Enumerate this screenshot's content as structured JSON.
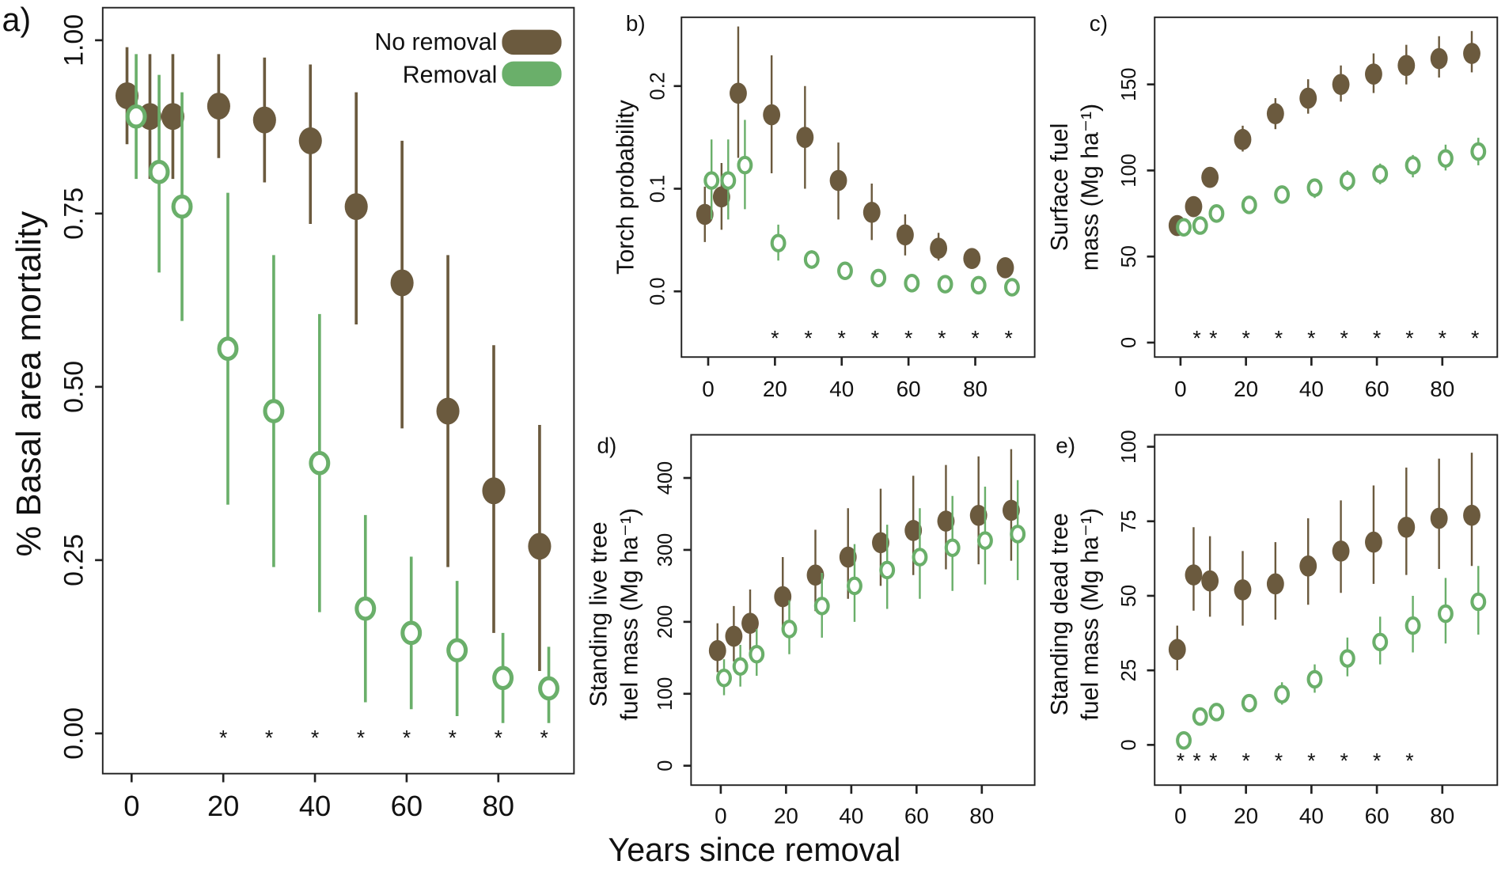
{
  "colors": {
    "no_removal": "#6b5a3e",
    "removal": "#6aaf6a"
  },
  "legend": {
    "no_removal": "No removal",
    "removal": "Removal",
    "placement": "top-right of panel a"
  },
  "xlabel": "Years since removal",
  "chart_data": [
    {
      "type": "scatter",
      "panel": "a)",
      "ylabel": [
        "% Basal area mortality"
      ],
      "x": [
        0,
        5,
        10,
        20,
        30,
        40,
        50,
        60,
        70,
        80,
        90
      ],
      "xlim": [
        -6.3,
        96.5
      ],
      "ylim": [
        -0.058,
        1.047
      ],
      "xticks": [
        "0",
        "20",
        "40",
        "60",
        "80"
      ],
      "xtick_values": [
        0,
        20,
        40,
        60,
        80
      ],
      "yticks": [
        "0.00",
        "0.25",
        "0.50",
        "0.75",
        "1.00"
      ],
      "ytick_values": [
        0,
        0.25,
        0.5,
        0.75,
        1.0
      ],
      "series": [
        {
          "name": "No removal",
          "values": [
            0.92,
            0.89,
            0.89,
            0.905,
            0.885,
            0.855,
            0.76,
            0.65,
            0.465,
            0.35,
            0.27
          ],
          "lower": [
            0.85,
            0.8,
            0.8,
            0.83,
            0.795,
            0.735,
            0.59,
            0.44,
            0.24,
            0.145,
            0.09
          ],
          "upper": [
            0.99,
            0.98,
            0.98,
            0.98,
            0.975,
            0.965,
            0.925,
            0.855,
            0.69,
            0.56,
            0.445
          ]
        },
        {
          "name": "Removal",
          "values": [
            0.89,
            0.81,
            0.76,
            0.555,
            0.465,
            0.39,
            0.18,
            0.145,
            0.12,
            0.08,
            0.065
          ],
          "lower": [
            0.8,
            0.665,
            0.595,
            0.33,
            0.24,
            0.175,
            0.045,
            0.035,
            0.025,
            0.015,
            0.015
          ],
          "upper": [
            0.98,
            0.95,
            0.925,
            0.78,
            0.69,
            0.605,
            0.315,
            0.255,
            0.22,
            0.145,
            0.125
          ]
        }
      ],
      "significant_x": [
        20,
        30,
        40,
        50,
        60,
        70,
        80,
        90
      ],
      "significance_marker": "*"
    },
    {
      "type": "scatter",
      "panel": "b)",
      "ylabel": [
        "Torch probability"
      ],
      "x": [
        0,
        5,
        10,
        20,
        30,
        40,
        50,
        60,
        70,
        80,
        90
      ],
      "xlim": [
        -8,
        97.8
      ],
      "ylim": [
        -0.064,
        0.267
      ],
      "xticks": [
        "0",
        "20",
        "40",
        "60",
        "80"
      ],
      "xtick_values": [
        0,
        20,
        40,
        60,
        80
      ],
      "yticks": [
        "0.0",
        "0.1",
        "0.2"
      ],
      "ytick_values": [
        0,
        0.1,
        0.2
      ],
      "series": [
        {
          "name": "No removal",
          "values": [
            0.075,
            0.092,
            0.193,
            0.172,
            0.15,
            0.108,
            0.077,
            0.055,
            0.042,
            0.032,
            0.023
          ],
          "lower": [
            0.048,
            0.06,
            0.13,
            0.115,
            0.1,
            0.07,
            0.05,
            0.035,
            0.03,
            0.023,
            0.018
          ],
          "upper": [
            0.102,
            0.125,
            0.258,
            0.23,
            0.2,
            0.145,
            0.105,
            0.075,
            0.057,
            0.04,
            0.03
          ]
        },
        {
          "name": "Removal",
          "values": [
            0.108,
            0.108,
            0.123,
            0.047,
            0.031,
            0.02,
            0.013,
            0.008,
            0.007,
            0.006,
            0.004
          ],
          "lower": [
            0.07,
            0.07,
            0.08,
            0.03,
            0.022,
            0.015,
            0.009,
            0.005,
            0.004,
            0.004,
            0.002
          ],
          "upper": [
            0.148,
            0.148,
            0.167,
            0.065,
            0.04,
            0.026,
            0.017,
            0.011,
            0.01,
            0.008,
            0.006
          ]
        }
      ],
      "significant_x": [
        20,
        30,
        40,
        50,
        60,
        70,
        80,
        90
      ],
      "significance_marker": "*"
    },
    {
      "type": "scatter",
      "panel": "c)",
      "ylabel": [
        "Surface fuel",
        "mass (Mg ha⁻¹)"
      ],
      "x": [
        0,
        5,
        10,
        20,
        30,
        40,
        50,
        60,
        70,
        80,
        90
      ],
      "xlim": [
        -7.9,
        96.8
      ],
      "ylim": [
        -8.4,
        189
      ],
      "xticks": [
        "0",
        "20",
        "40",
        "60",
        "80"
      ],
      "xtick_values": [
        0,
        20,
        40,
        60,
        80
      ],
      "yticks": [
        "0",
        "50",
        "100",
        "150"
      ],
      "ytick_values": [
        0,
        50,
        100,
        150
      ],
      "series": [
        {
          "name": "No removal",
          "values": [
            68,
            79,
            96,
            118,
            133,
            142,
            150,
            156,
            161,
            165,
            168
          ],
          "lower": [
            65,
            75,
            91,
            111,
            124,
            133,
            140,
            145,
            150,
            154,
            157
          ],
          "upper": [
            71,
            83,
            101,
            126,
            142,
            153,
            161,
            168,
            173,
            178,
            181
          ]
        },
        {
          "name": "Removal",
          "values": [
            67,
            68,
            75,
            80,
            86,
            90,
            94,
            98,
            103,
            107,
            111
          ],
          "lower": [
            64,
            64,
            70,
            75,
            81,
            84,
            88,
            92,
            96,
            100,
            103
          ],
          "upper": [
            70,
            72,
            79,
            85,
            91,
            95,
            100,
            104,
            109,
            115,
            119
          ]
        }
      ],
      "significant_x": [
        5,
        10,
        20,
        30,
        40,
        50,
        60,
        70,
        80,
        90
      ],
      "significance_marker": "*"
    },
    {
      "type": "scatter",
      "panel": "d)",
      "ylabel": [
        "Standing live tree",
        "fuel mass (Mg ha⁻¹)"
      ],
      "x": [
        0,
        5,
        10,
        20,
        30,
        40,
        50,
        60,
        70,
        80,
        90
      ],
      "xlim": [
        -9.1,
        96.2
      ],
      "ylim": [
        -27,
        460
      ],
      "xticks": [
        "0",
        "20",
        "40",
        "60",
        "80"
      ],
      "xtick_values": [
        0,
        20,
        40,
        60,
        80
      ],
      "yticks": [
        "0",
        "100",
        "200",
        "300",
        "400"
      ],
      "ytick_values": [
        0,
        100,
        200,
        300,
        400
      ],
      "series": [
        {
          "name": "No removal",
          "values": [
            160,
            180,
            198,
            235,
            265,
            290,
            310,
            327,
            340,
            348,
            355
          ],
          "lower": [
            130,
            145,
            160,
            190,
            215,
            232,
            250,
            265,
            273,
            280,
            285
          ],
          "upper": [
            198,
            222,
            245,
            290,
            328,
            358,
            385,
            403,
            418,
            430,
            440
          ]
        },
        {
          "name": "Removal",
          "values": [
            122,
            138,
            155,
            190,
            222,
            250,
            272,
            290,
            303,
            313,
            322
          ],
          "lower": [
            98,
            110,
            125,
            155,
            178,
            200,
            218,
            232,
            243,
            252,
            258
          ],
          "upper": [
            148,
            168,
            190,
            230,
            268,
            308,
            335,
            358,
            375,
            388,
            397
          ]
        }
      ],
      "significant_x": [],
      "significance_marker": "*"
    },
    {
      "type": "scatter",
      "panel": "e)",
      "ylabel": [
        "Standing dead tree",
        "fuel mass (Mg ha⁻¹)"
      ],
      "x": [
        0,
        5,
        10,
        20,
        30,
        40,
        50,
        60,
        70,
        80,
        90
      ],
      "xlim": [
        -7.9,
        96.8
      ],
      "ylim": [
        -13.5,
        104
      ],
      "xticks": [
        "0",
        "20",
        "40",
        "60",
        "80"
      ],
      "xtick_values": [
        0,
        20,
        40,
        60,
        80
      ],
      "yticks": [
        "0",
        "25",
        "50",
        "75",
        "100"
      ],
      "ytick_values": [
        0,
        25,
        50,
        75,
        100
      ],
      "series": [
        {
          "name": "No removal",
          "values": [
            32,
            57,
            55,
            52,
            54,
            60,
            65,
            68,
            73,
            76,
            77
          ],
          "lower": [
            25,
            45,
            43,
            40,
            42,
            47,
            51,
            54,
            57,
            59,
            60
          ],
          "upper": [
            40,
            73,
            70,
            65,
            68,
            76,
            82,
            87,
            93,
            96,
            98
          ]
        },
        {
          "name": "Removal",
          "values": [
            1.5,
            9.5,
            11,
            14,
            17,
            22,
            29,
            34.5,
            40,
            44,
            48
          ],
          "lower": [
            0,
            7,
            8.5,
            11,
            13.5,
            17.5,
            23,
            27,
            31,
            34,
            37
          ],
          "upper": [
            3,
            12,
            13.5,
            17,
            21,
            27,
            36,
            43,
            50,
            56,
            60
          ]
        }
      ],
      "significant_x": [
        0,
        5,
        10,
        20,
        30,
        40,
        50,
        60,
        70
      ],
      "significance_marker": "*"
    }
  ]
}
